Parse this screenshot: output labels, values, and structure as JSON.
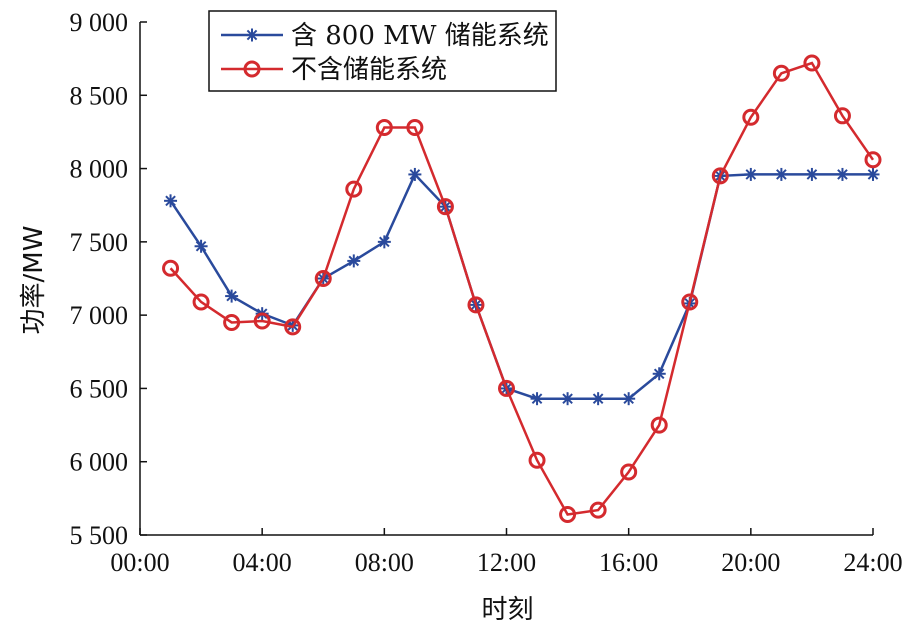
{
  "chart_data": {
    "type": "line",
    "xlabel": "时刻",
    "ylabel": "功率/MW",
    "x_tick_labels": [
      "00:00",
      "04:00",
      "08:00",
      "12:00",
      "16:00",
      "20:00",
      "24:00"
    ],
    "y_tick_labels": [
      "5 500",
      "6 000",
      "6 500",
      "7 000",
      "7 500",
      "8 000",
      "8 500",
      "9 000"
    ],
    "xlim": [
      0,
      24
    ],
    "ylim": [
      5500,
      9000
    ],
    "grid": false,
    "legend_position": "top-left",
    "x": [
      1,
      2,
      3,
      4,
      5,
      6,
      7,
      8,
      9,
      10,
      11,
      12,
      13,
      14,
      15,
      16,
      17,
      18,
      19,
      20,
      21,
      22,
      23,
      24
    ],
    "series": [
      {
        "name": "含 800 MW 储能系统",
        "color": "#2a4a9c",
        "marker": "asterisk",
        "values": [
          7780,
          7470,
          7130,
          7010,
          6930,
          7250,
          7370,
          7500,
          7960,
          7740,
          7070,
          6500,
          6430,
          6430,
          6430,
          6430,
          6600,
          7080,
          7950,
          7960,
          7960,
          7960,
          7960,
          7960
        ]
      },
      {
        "name": "不含储能系统",
        "color": "#d42a2e",
        "marker": "circle",
        "values": [
          7320,
          7090,
          6950,
          6960,
          6920,
          7250,
          7860,
          8280,
          8280,
          7740,
          7070,
          6500,
          6010,
          5640,
          5670,
          5930,
          6250,
          7090,
          7950,
          8350,
          8650,
          8720,
          8360,
          8060
        ]
      }
    ]
  }
}
